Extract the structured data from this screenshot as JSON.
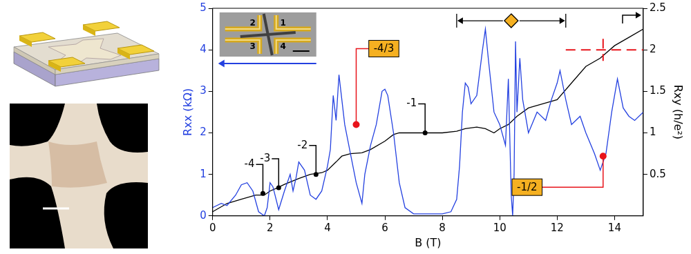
{
  "chart_data": {
    "type": "line",
    "x_label": "B (T)",
    "y_label": "Rxx (kΩ)",
    "y2_label": "Rxy (h/e²)",
    "xlim": [
      0,
      15
    ],
    "xticks": [
      0,
      2,
      4,
      6,
      8,
      10,
      12,
      14
    ],
    "ylim": [
      0,
      5
    ],
    "yticks": [
      0,
      1,
      2,
      3,
      4,
      5
    ],
    "y2lim": [
      0,
      2.5
    ],
    "y2ticks": [
      0.5,
      1,
      1.5,
      2,
      2.5
    ],
    "grid": false,
    "series": [
      {
        "color": "#2340e0",
        "x": [
          0,
          0.3,
          0.5,
          0.8,
          1.0,
          1.2,
          1.4,
          1.6,
          1.8,
          1.9,
          2.0,
          2.1,
          2.3,
          2.5,
          2.7,
          2.8,
          2.9,
          3.0,
          3.2,
          3.4,
          3.6,
          3.8,
          4.0,
          4.1,
          4.2,
          4.3,
          4.4,
          4.5,
          4.6,
          4.8,
          5.0,
          5.2,
          5.3,
          5.5,
          5.7,
          5.9,
          6.0,
          6.1,
          6.3,
          6.5,
          6.7,
          7.0,
          7.5,
          8.0,
          8.3,
          8.5,
          8.6,
          8.7,
          8.8,
          8.9,
          9.0,
          9.2,
          9.4,
          9.5,
          9.6,
          9.8,
          10.0,
          10.2,
          10.3,
          10.4,
          10.45,
          10.5,
          10.55,
          10.6,
          10.7,
          10.8,
          11.0,
          11.3,
          11.6,
          11.8,
          12.0,
          12.1,
          12.3,
          12.5,
          12.8,
          13.0,
          13.3,
          13.5,
          13.7,
          13.9,
          14.1,
          14.3,
          14.5,
          14.7,
          15.0
        ],
        "values": [
          0.2,
          0.3,
          0.25,
          0.5,
          0.75,
          0.8,
          0.6,
          0.1,
          0.0,
          0.2,
          0.8,
          0.7,
          0.15,
          0.6,
          1.0,
          0.6,
          0.9,
          1.3,
          1.1,
          0.5,
          0.4,
          0.6,
          1.2,
          1.6,
          2.9,
          2.3,
          3.4,
          2.8,
          2.2,
          1.5,
          0.8,
          0.3,
          1.0,
          1.7,
          2.2,
          3.0,
          3.05,
          2.9,
          2.0,
          0.8,
          0.2,
          0.05,
          0.05,
          0.05,
          0.1,
          0.4,
          1.2,
          2.5,
          3.2,
          3.1,
          2.7,
          2.9,
          4.0,
          4.5,
          3.8,
          2.5,
          2.2,
          1.7,
          3.3,
          0.5,
          0.0,
          1.0,
          4.2,
          2.5,
          3.8,
          2.8,
          2.0,
          2.5,
          2.3,
          2.8,
          3.2,
          3.5,
          2.8,
          2.2,
          2.4,
          2.0,
          1.5,
          1.1,
          1.5,
          2.5,
          3.3,
          2.6,
          2.4,
          2.3,
          2.5
        ]
      },
      {
        "color": "#000000",
        "axis": "y2",
        "x": [
          0,
          0.5,
          1.0,
          1.5,
          1.8,
          2.0,
          2.2,
          2.5,
          3.0,
          3.4,
          3.8,
          4.0,
          4.3,
          4.5,
          4.8,
          5.2,
          5.5,
          6.0,
          6.3,
          6.5,
          8.0,
          8.5,
          8.8,
          9.2,
          9.5,
          9.8,
          10.0,
          10.3,
          10.6,
          11.0,
          11.5,
          12.0,
          12.5,
          13.0,
          13.5,
          14.0,
          14.5,
          15.0
        ],
        "values": [
          0.05,
          0.15,
          0.2,
          0.25,
          0.25,
          0.3,
          0.33,
          0.38,
          0.45,
          0.5,
          0.52,
          0.55,
          0.65,
          0.72,
          0.75,
          0.76,
          0.8,
          0.9,
          0.98,
          1.0,
          1.0,
          1.02,
          1.05,
          1.07,
          1.05,
          1.0,
          1.05,
          1.1,
          1.2,
          1.3,
          1.35,
          1.4,
          1.6,
          1.8,
          1.9,
          2.05,
          2.15,
          2.25
        ]
      }
    ],
    "annotations": [
      {
        "text": "-4",
        "x": 1.75,
        "y": 0.27,
        "axis": "y2",
        "color": "#000000"
      },
      {
        "text": "-3",
        "x": 2.3,
        "y": 0.34,
        "axis": "y2",
        "color": "#000000"
      },
      {
        "text": "-2",
        "x": 3.6,
        "y": 0.5,
        "axis": "y2",
        "color": "#000000"
      },
      {
        "text": "-4/3",
        "x": 5.0,
        "y": 1.1,
        "axis": "y2",
        "color": "#e8141b",
        "box_color": "#f5b021"
      },
      {
        "text": "-1",
        "x": 7.4,
        "y": 1.0,
        "axis": "y2",
        "color": "#000000"
      },
      {
        "text": "-1/2",
        "x": 13.6,
        "y": 0.72,
        "axis": "y2",
        "color": "#e8141b",
        "box_color": "#f5b021"
      }
    ],
    "brackets": [
      {
        "marker": "diamond",
        "from": 8.5,
        "to": 12.3,
        "y": 2.35,
        "axis": "y2",
        "color": "#f5b021"
      }
    ],
    "reference_lines": [
      {
        "y": 2,
        "axis": "y2",
        "x_from": 12.3,
        "x_to": 15,
        "x_mark": 13.6,
        "color": "#e8141b",
        "line_style": "dashed"
      }
    ],
    "inset": {
      "labels": [
        "1",
        "2",
        "3",
        "4"
      ]
    }
  }
}
